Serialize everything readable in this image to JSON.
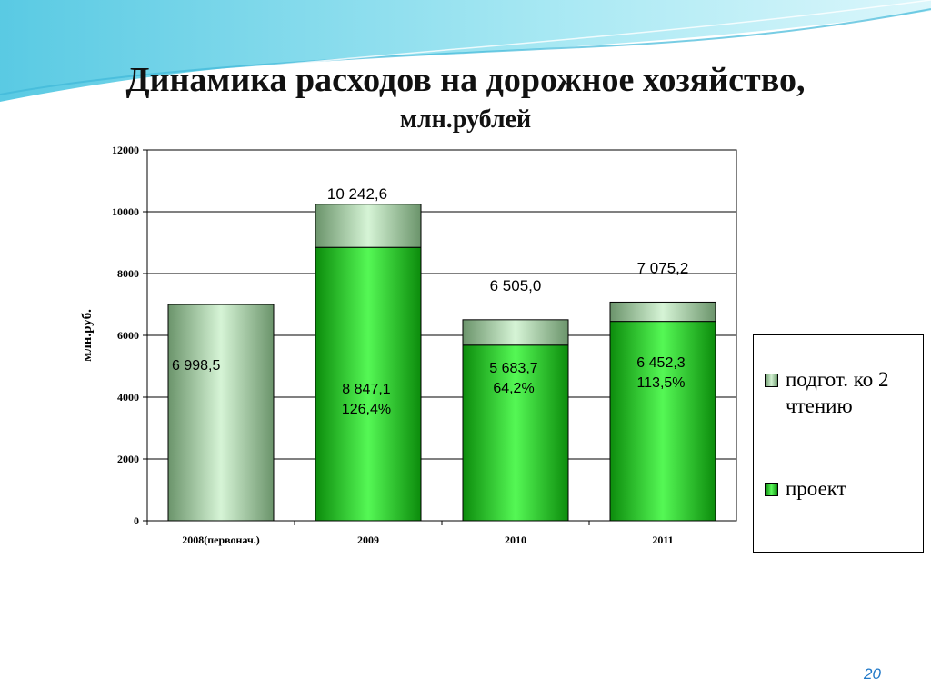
{
  "slide": {
    "title": "Динамика расходов на дорожное хозяйство,",
    "subtitle": "млн.рублей",
    "page_number": "20"
  },
  "colors": {
    "project": "#22cc22",
    "prep": "#9ec49e",
    "background_wave": "#6ed3e8"
  },
  "chart_data": {
    "type": "bar",
    "stacked": true,
    "ylabel": "млн.руб.",
    "xlabel": "",
    "ylim": [
      0,
      12000
    ],
    "yticks": [
      0,
      2000,
      4000,
      6000,
      8000,
      10000,
      12000
    ],
    "grid": true,
    "legend_position": "right",
    "categories": [
      "2008(первонач.)",
      "2009",
      "2010",
      "2011"
    ],
    "series": [
      {
        "name": "проект",
        "values": [
          null,
          8847.1,
          5683.7,
          6452.3
        ]
      },
      {
        "name": "подгот. ко 2 чтению",
        "values": [
          6998.5,
          1395.5,
          821.3,
          622.9
        ]
      }
    ],
    "totals": [
      6998.5,
      10242.6,
      6505.0,
      7075.2
    ],
    "labels": {
      "totals": [
        "",
        "10 242,6",
        "6 505,0",
        "7 075,2"
      ],
      "inner_value": [
        "6 998,5",
        "8 847,1",
        "5 683,7",
        "6 452,3"
      ],
      "inner_percent": [
        "",
        "126,4%",
        "64,2%",
        "113,5%"
      ]
    }
  }
}
